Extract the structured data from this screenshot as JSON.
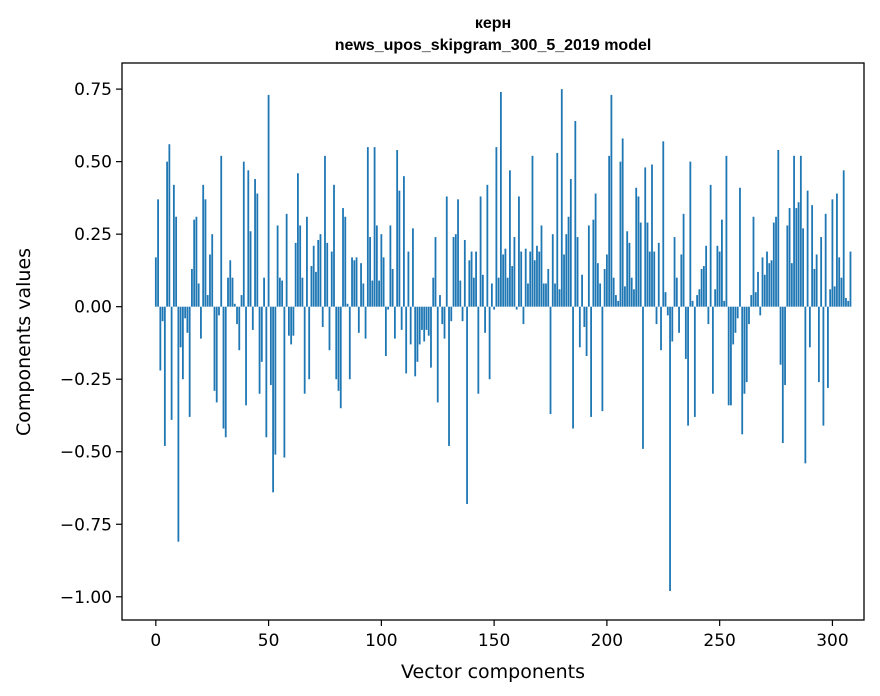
{
  "chart_data": {
    "type": "bar",
    "title": "керн",
    "subtitle": "news_upos_skipgram_300_5_2019 model",
    "xlabel": "Vector components",
    "ylabel": "Components values",
    "xlim": [
      -15,
      314
    ],
    "ylim": [
      -1.08,
      0.84
    ],
    "x_ticks": [
      0,
      50,
      100,
      150,
      200,
      250,
      300
    ],
    "x_tick_labels": [
      "0",
      "50",
      "100",
      "150",
      "200",
      "250",
      "300"
    ],
    "y_ticks": [
      0.75,
      0.5,
      0.25,
      0.0,
      -0.25,
      -0.5,
      -0.75,
      -1.0
    ],
    "y_tick_labels": [
      "0.75",
      "0.50",
      "0.25",
      "0.00",
      "−0.25",
      "−0.50",
      "−0.75",
      "−1.00"
    ],
    "bar_color": "#1f77b4",
    "grid": false,
    "values": [
      0.17,
      0.37,
      -0.22,
      -0.05,
      -0.48,
      0.5,
      0.56,
      -0.39,
      0.42,
      0.31,
      -0.81,
      -0.14,
      -0.25,
      -0.04,
      -0.09,
      -0.38,
      0.13,
      0.3,
      0.31,
      0.08,
      -0.11,
      0.42,
      0.37,
      0.04,
      0.18,
      0.25,
      -0.29,
      -0.33,
      -0.03,
      0.52,
      -0.42,
      -0.45,
      0.1,
      0.16,
      0.1,
      0.01,
      -0.06,
      -0.15,
      0.04,
      0.5,
      -0.34,
      0.47,
      0.26,
      -0.08,
      0.44,
      0.39,
      -0.3,
      -0.19,
      0.1,
      -0.45,
      0.73,
      -0.27,
      -0.64,
      -0.51,
      0.28,
      0.1,
      0.09,
      -0.52,
      0.32,
      -0.1,
      -0.13,
      -0.1,
      0.22,
      0.46,
      0.28,
      0.1,
      -0.3,
      0.31,
      -0.25,
      0.14,
      0.21,
      0.12,
      0.23,
      0.25,
      -0.07,
      0.52,
      0.22,
      -0.15,
      0.19,
      0.42,
      -0.25,
      -0.29,
      -0.35,
      0.34,
      0.31,
      0.01,
      -0.25,
      0.17,
      0.16,
      0.17,
      -0.09,
      0.15,
      0.08,
      -0.11,
      0.55,
      0.24,
      0.09,
      0.55,
      0.28,
      0.09,
      0.25,
      0.17,
      -0.17,
      -0.01,
      0.28,
      0.13,
      -0.11,
      0.54,
      0.4,
      -0.08,
      0.45,
      -0.23,
      0.19,
      -0.13,
      0.27,
      -0.24,
      -0.19,
      -0.13,
      -0.08,
      -0.12,
      -0.08,
      -0.1,
      -0.21,
      0.1,
      0.24,
      -0.33,
      0.04,
      -0.06,
      -0.11,
      0.38,
      -0.48,
      -0.05,
      0.24,
      0.25,
      0.37,
      0.09,
      -0.05,
      0.23,
      -0.68,
      0.16,
      0.19,
      0.1,
      0.19,
      -0.3,
      0.38,
      0.11,
      -0.09,
      0.42,
      -0.25,
      0.08,
      -0.01,
      0.55,
      0.1,
      0.74,
      0.18,
      0.2,
      0.1,
      0.47,
      0.14,
      0.24,
      -0.01,
      0.38,
      0.19,
      -0.06,
      0.2,
      0.08,
      0.19,
      0.52,
      0.16,
      0.21,
      0.19,
      0.28,
      0.08,
      0.08,
      0.13,
      -0.37,
      0.25,
      0.08,
      0.53,
      0.06,
      0.75,
      0.18,
      0.25,
      0.31,
      0.44,
      -0.42,
      0.64,
      0.24,
      -0.14,
      0.11,
      -0.07,
      -0.17,
      0.28,
      -0.38,
      0.3,
      0.39,
      0.15,
      0.08,
      -0.36,
      0.13,
      0.18,
      0.52,
      0.73,
      0.1,
      0.04,
      0.02,
      0.5,
      0.58,
      0.07,
      0.26,
      0.22,
      0.1,
      0.06,
      0.41,
      0.38,
      0.29,
      -0.49,
      0.48,
      0.29,
      0.19,
      0.49,
      0.19,
      -0.06,
      0.22,
      -0.15,
      0.57,
      0.05,
      -0.03,
      -0.98,
      -0.12,
      0.24,
      0.1,
      -0.09,
      0.18,
      0.32,
      -0.18,
      -0.41,
      0.5,
      0.02,
      -0.38,
      0.04,
      0.06,
      0.13,
      0.14,
      0.21,
      -0.06,
      0.42,
      -0.3,
      0.06,
      0.21,
      0.19,
      0.3,
      0.02,
      0.52,
      -0.34,
      -0.34,
      -0.13,
      -0.09,
      -0.04,
      0.41,
      -0.44,
      -0.3,
      -0.26,
      -0.06,
      0.04,
      0.31,
      0.05,
      0.12,
      -0.03,
      0.17,
      0.11,
      0.19,
      0.15,
      0.16,
      0.29,
      0.31,
      0.54,
      -0.2,
      -0.47,
      -0.27,
      0.28,
      0.34,
      0.15,
      0.52,
      0.34,
      0.36,
      0.52,
      0.27,
      -0.54,
      0.4,
      -0.14,
      0.35,
      0.13,
      0.18,
      -0.26,
      0.24,
      -0.41,
      0.32,
      -0.28,
      0.06,
      0.37,
      0.07,
      0.39,
      0.17,
      0.1,
      0.47,
      0.03,
      0.02,
      0.19
    ]
  }
}
